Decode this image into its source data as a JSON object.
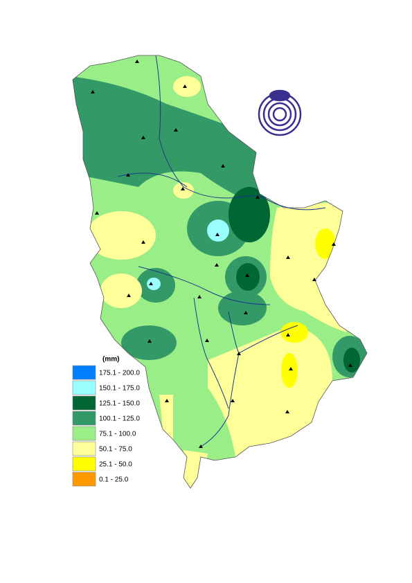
{
  "legend": {
    "title": "(mm)",
    "items": [
      {
        "label": "175.1 - 200.0",
        "color": "#0080ff"
      },
      {
        "label": "150.1 - 175.0",
        "color": "#99ffff"
      },
      {
        "label": "125.1 - 150.0",
        "color": "#006633"
      },
      {
        "label": "100.1 - 125.0",
        "color": "#339966"
      },
      {
        "label": "75.1 - 100.0",
        "color": "#99ee88"
      },
      {
        "label": "50.1 - 75.0",
        "color": "#ffff99"
      },
      {
        "label": "25.1 - 50.0",
        "color": "#ffff00"
      },
      {
        "label": "0.1 - 25.0",
        "color": "#ff9900"
      }
    ]
  }
}
